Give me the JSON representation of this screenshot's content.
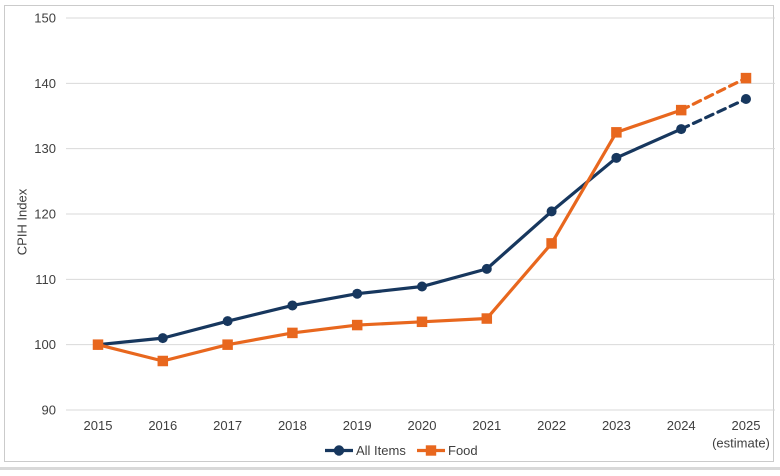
{
  "chart_data": {
    "type": "line",
    "title": "",
    "xlabel": "",
    "ylabel": "CPIH Index",
    "x_categories": [
      "2015",
      "2016",
      "2017",
      "2018",
      "2019",
      "2020",
      "2021",
      "2022",
      "2023",
      "2024",
      "2025"
    ],
    "x_final_category_note": "(estimate)",
    "ylim": [
      90,
      150
    ],
    "yticks": [
      90,
      100,
      110,
      120,
      130,
      140,
      150
    ],
    "grid": "horizontal-only",
    "legend_position": "bottom-center",
    "series": [
      {
        "name": "All Items",
        "marker": "circle",
        "color": "#17375E",
        "dashed_from_index": 9,
        "values": [
          100,
          101.0,
          103.6,
          106.0,
          107.8,
          108.9,
          111.6,
          120.4,
          128.6,
          133.0,
          137.6
        ]
      },
      {
        "name": "Food",
        "marker": "square",
        "color": "#E8671E",
        "dashed_from_index": 9,
        "values": [
          100,
          97.5,
          100.0,
          101.8,
          103.0,
          103.5,
          104.0,
          115.5,
          132.5,
          135.9,
          140.8
        ]
      }
    ]
  },
  "colors": {
    "gridline": "#D9D9D9",
    "text": "#3F3F3F",
    "frame_border": "#CBCBCB",
    "bottom_rule": "#D9D9D9",
    "background": "#FFFFFF"
  }
}
